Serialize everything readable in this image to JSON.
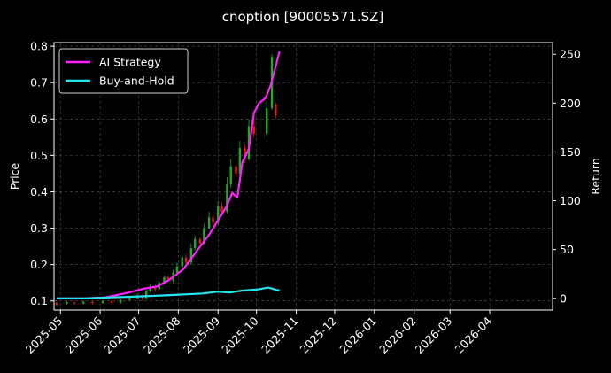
{
  "chart_data": {
    "type": "line",
    "title": "cnoption [90005571.SZ]",
    "ylabel": "Price",
    "y2label": "Return",
    "grid": true,
    "legend_position": "top-left",
    "xlim": [
      "2025-04-26",
      "2026-05-20"
    ],
    "ylim": [
      0.075,
      0.81
    ],
    "y2lim": [
      -12,
      262
    ],
    "x_ticks": [
      "2025-05",
      "2025-06",
      "2025-07",
      "2025-08",
      "2025-09",
      "2025-10",
      "2025-11",
      "2025-12",
      "2026-01",
      "2026-02",
      "2026-03",
      "2026-04"
    ],
    "y_ticks": [
      "0.1",
      "0.2",
      "0.3",
      "0.4",
      "0.5",
      "0.6",
      "0.7",
      "0.8"
    ],
    "y2_ticks": [
      "0",
      "50",
      "100",
      "150",
      "200",
      "250"
    ],
    "colors": {
      "up": "#22aa22",
      "down": "#ee1111",
      "ai": "#ff22ff",
      "bh": "#22e5ee",
      "grid": "#555555",
      "background": "#000000"
    },
    "candles": [
      {
        "date": "2025-04-28",
        "open": 0.095,
        "close": 0.09,
        "high": 0.098,
        "low": 0.087
      },
      {
        "date": "2025-05-06",
        "open": 0.092,
        "close": 0.097,
        "high": 0.1,
        "low": 0.09
      },
      {
        "date": "2025-05-12",
        "open": 0.096,
        "close": 0.093,
        "high": 0.099,
        "low": 0.089
      },
      {
        "date": "2025-05-19",
        "open": 0.093,
        "close": 0.098,
        "high": 0.101,
        "low": 0.091
      },
      {
        "date": "2025-05-26",
        "open": 0.098,
        "close": 0.094,
        "high": 0.1,
        "low": 0.09
      },
      {
        "date": "2025-06-03",
        "open": 0.094,
        "close": 0.099,
        "high": 0.102,
        "low": 0.092
      },
      {
        "date": "2025-06-10",
        "open": 0.099,
        "close": 0.095,
        "high": 0.101,
        "low": 0.091
      },
      {
        "date": "2025-06-17",
        "open": 0.095,
        "close": 0.103,
        "high": 0.106,
        "low": 0.093
      },
      {
        "date": "2025-06-24",
        "open": 0.103,
        "close": 0.108,
        "high": 0.112,
        "low": 0.1
      },
      {
        "date": "2025-06-30",
        "open": 0.108,
        "close": 0.115,
        "high": 0.12,
        "low": 0.104
      },
      {
        "date": "2025-07-04",
        "open": 0.115,
        "close": 0.108,
        "high": 0.118,
        "low": 0.1
      },
      {
        "date": "2025-07-07",
        "open": 0.108,
        "close": 0.128,
        "high": 0.134,
        "low": 0.105
      },
      {
        "date": "2025-07-10",
        "open": 0.128,
        "close": 0.14,
        "high": 0.146,
        "low": 0.124
      },
      {
        "date": "2025-07-14",
        "open": 0.14,
        "close": 0.132,
        "high": 0.144,
        "low": 0.126
      },
      {
        "date": "2025-07-17",
        "open": 0.132,
        "close": 0.15,
        "high": 0.155,
        "low": 0.128
      },
      {
        "date": "2025-07-21",
        "open": 0.15,
        "close": 0.165,
        "high": 0.17,
        "low": 0.145
      },
      {
        "date": "2025-07-24",
        "open": 0.165,
        "close": 0.155,
        "high": 0.168,
        "low": 0.15
      },
      {
        "date": "2025-07-28",
        "open": 0.155,
        "close": 0.178,
        "high": 0.185,
        "low": 0.15
      },
      {
        "date": "2025-07-31",
        "open": 0.178,
        "close": 0.195,
        "high": 0.205,
        "low": 0.172
      },
      {
        "date": "2025-08-04",
        "open": 0.195,
        "close": 0.22,
        "high": 0.232,
        "low": 0.188
      },
      {
        "date": "2025-08-07",
        "open": 0.22,
        "close": 0.205,
        "high": 0.228,
        "low": 0.198
      },
      {
        "date": "2025-08-11",
        "open": 0.205,
        "close": 0.245,
        "high": 0.258,
        "low": 0.2
      },
      {
        "date": "2025-08-14",
        "open": 0.245,
        "close": 0.27,
        "high": 0.28,
        "low": 0.238
      },
      {
        "date": "2025-08-18",
        "open": 0.27,
        "close": 0.258,
        "high": 0.275,
        "low": 0.25
      },
      {
        "date": "2025-08-21",
        "open": 0.258,
        "close": 0.3,
        "high": 0.312,
        "low": 0.255
      },
      {
        "date": "2025-08-25",
        "open": 0.3,
        "close": 0.33,
        "high": 0.345,
        "low": 0.295
      },
      {
        "date": "2025-08-28",
        "open": 0.33,
        "close": 0.315,
        "high": 0.338,
        "low": 0.305
      },
      {
        "date": "2025-09-01",
        "open": 0.315,
        "close": 0.36,
        "high": 0.375,
        "low": 0.31
      },
      {
        "date": "2025-09-04",
        "open": 0.36,
        "close": 0.345,
        "high": 0.372,
        "low": 0.338
      },
      {
        "date": "2025-09-08",
        "open": 0.345,
        "close": 0.42,
        "high": 0.44,
        "low": 0.34
      },
      {
        "date": "2025-09-11",
        "open": 0.42,
        "close": 0.47,
        "high": 0.49,
        "low": 0.41
      },
      {
        "date": "2025-09-15",
        "open": 0.47,
        "close": 0.45,
        "high": 0.478,
        "low": 0.44
      },
      {
        "date": "2025-09-18",
        "open": 0.45,
        "close": 0.52,
        "high": 0.54,
        "low": 0.445
      },
      {
        "date": "2025-09-22",
        "open": 0.52,
        "close": 0.49,
        "high": 0.53,
        "low": 0.48
      },
      {
        "date": "2025-09-25",
        "open": 0.49,
        "close": 0.58,
        "high": 0.6,
        "low": 0.485
      },
      {
        "date": "2025-09-29",
        "open": 0.58,
        "close": 0.56,
        "high": 0.605,
        "low": 0.55
      },
      {
        "date": "2025-10-09",
        "open": 0.56,
        "close": 0.63,
        "high": 0.65,
        "low": 0.55
      },
      {
        "date": "2025-10-13",
        "open": 0.63,
        "close": 0.77,
        "high": 0.778,
        "low": 0.625
      },
      {
        "date": "2025-10-16",
        "open": 0.64,
        "close": 0.61,
        "high": 0.645,
        "low": 0.6
      }
    ],
    "series": [
      {
        "name": "AI Strategy",
        "axis": "right",
        "x": [
          "2025-04-28",
          "2025-05-20",
          "2025-06-05",
          "2025-06-20",
          "2025-07-05",
          "2025-07-15",
          "2025-07-25",
          "2025-08-05",
          "2025-08-15",
          "2025-08-25",
          "2025-09-01",
          "2025-09-08",
          "2025-09-12",
          "2025-09-16",
          "2025-09-20",
          "2025-09-25",
          "2025-09-29",
          "2025-10-03",
          "2025-10-08",
          "2025-10-12",
          "2025-10-16",
          "2025-10-19"
        ],
        "y": [
          0,
          0,
          1,
          5,
          10,
          12,
          19,
          30,
          48,
          65,
          80,
          95,
          108,
          103,
          140,
          153,
          190,
          200,
          205,
          218,
          238,
          253
        ]
      },
      {
        "name": "Buy-and-Hold",
        "axis": "right",
        "x": [
          "2025-04-28",
          "2025-05-20",
          "2025-06-10",
          "2025-07-01",
          "2025-07-20",
          "2025-08-05",
          "2025-08-20",
          "2025-09-01",
          "2025-09-10",
          "2025-09-20",
          "2025-10-01",
          "2025-10-10",
          "2025-10-16",
          "2025-10-19"
        ],
        "y": [
          0,
          0,
          1,
          2,
          3,
          4,
          5,
          7,
          6,
          8,
          9,
          11,
          9,
          8
        ]
      }
    ]
  }
}
